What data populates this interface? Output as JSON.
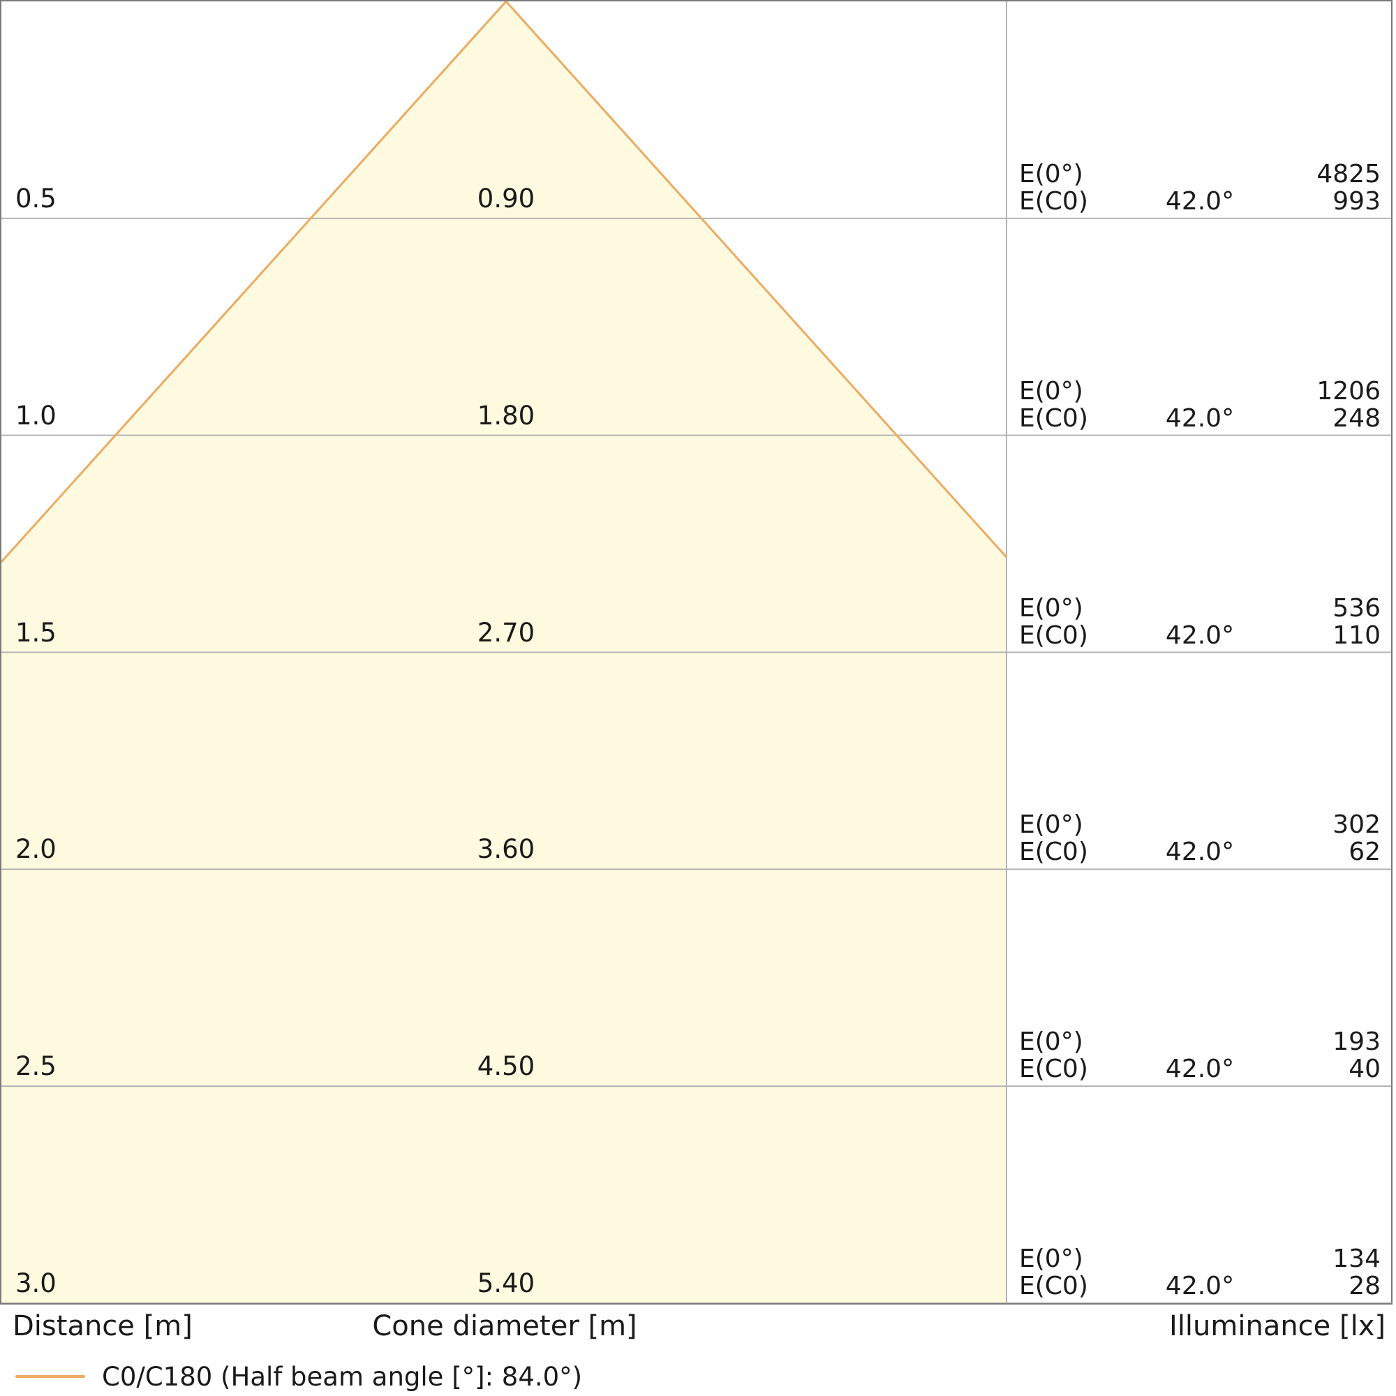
{
  "chart_data": {
    "type": "table",
    "title": "Light cone diagram (illuminance vs distance)",
    "columns": [
      "Distance [m]",
      "Cone diameter [m]",
      "Illuminance [lx]"
    ],
    "beam_edge_angle_deg": 42.0,
    "half_beam_angle_deg": 84.0,
    "distances_m": [
      0.5,
      1.0,
      1.5,
      2.0,
      2.5,
      3.0
    ],
    "cone_diameters_m": [
      0.9,
      1.8,
      2.7,
      3.6,
      4.5,
      5.4
    ],
    "E0_lx": [
      4825,
      1206,
      536,
      302,
      193,
      134
    ],
    "EC0_lx": [
      993,
      248,
      110,
      62,
      40,
      28
    ],
    "EC0_angle_deg": 42.0,
    "rows": [
      {
        "distance": "0.5",
        "diameter": "0.90",
        "e0_label": "E(0°)",
        "e0": "4825",
        "ec0_label": "E(C0)",
        "angle": "42.0°",
        "ec0": "993"
      },
      {
        "distance": "1.0",
        "diameter": "1.80",
        "e0_label": "E(0°)",
        "e0": "1206",
        "ec0_label": "E(C0)",
        "angle": "42.0°",
        "ec0": "248"
      },
      {
        "distance": "1.5",
        "diameter": "2.70",
        "e0_label": "E(0°)",
        "e0": "536",
        "ec0_label": "E(C0)",
        "angle": "42.0°",
        "ec0": "110"
      },
      {
        "distance": "2.0",
        "diameter": "3.60",
        "e0_label": "E(0°)",
        "e0": "302",
        "ec0_label": "E(C0)",
        "angle": "42.0°",
        "ec0": "62"
      },
      {
        "distance": "2.5",
        "diameter": "4.50",
        "e0_label": "E(0°)",
        "e0": "193",
        "ec0_label": "E(C0)",
        "angle": "42.0°",
        "ec0": "40"
      },
      {
        "distance": "3.0",
        "diameter": "5.40",
        "e0_label": "E(0°)",
        "e0": "134",
        "ec0_label": "E(C0)",
        "angle": "42.0°",
        "ec0": "28"
      }
    ],
    "legend_position": "bottom-left",
    "grid": true
  },
  "footer": {
    "distance": "Distance [m]",
    "cone_diameter": "Cone diameter [m]",
    "illuminance": "Illuminance [lx]"
  },
  "legend": {
    "label": "C0/C180 (Half beam angle [°]: 84.0°)"
  },
  "colors": {
    "cone_fill": "#FDFADF",
    "cone_stroke": "#ECAB62",
    "gridline": "#B3B3B3",
    "border": "#7A7A7A",
    "text": "#1A1A1A",
    "background": "#FFFFFF"
  }
}
